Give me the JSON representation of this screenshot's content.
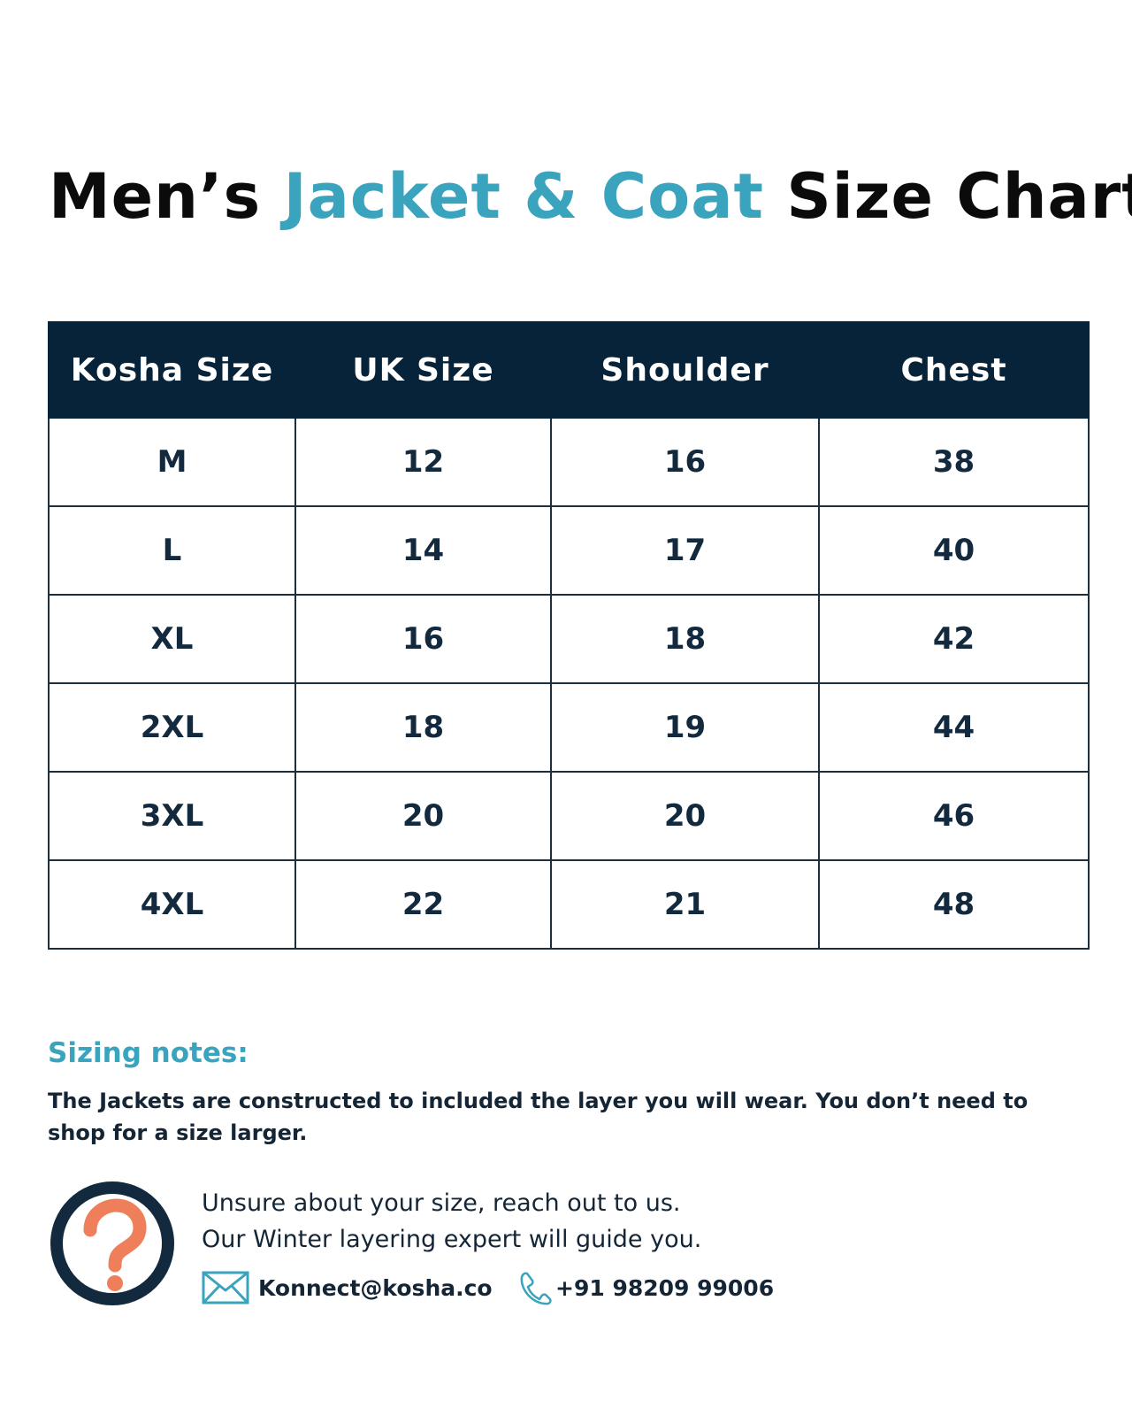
{
  "title": {
    "part1": "Men’s",
    "accent": "Jacket & Coat",
    "part2": "Size Chart"
  },
  "colors": {
    "accent": "#3aa3bd",
    "header_bg": "#062339",
    "text_dark": "#13293d",
    "question_mark": "#ee7f5a"
  },
  "table": {
    "headers": [
      "Kosha Size",
      "UK Size",
      "Shoulder",
      "Chest"
    ],
    "rows": [
      [
        "M",
        "12",
        "16",
        "38"
      ],
      [
        "L",
        "14",
        "17",
        "40"
      ],
      [
        "XL",
        "16",
        "18",
        "42"
      ],
      [
        "2XL",
        "18",
        "19",
        "44"
      ],
      [
        "3XL",
        "20",
        "20",
        "46"
      ],
      [
        "4XL",
        "22",
        "21",
        "48"
      ]
    ]
  },
  "notes": {
    "heading": "Sizing notes:",
    "text": "The Jackets are constructed to included the layer you will wear. You don’t need to shop for a size larger."
  },
  "help": {
    "icon": "question-circle-icon",
    "line1": "Unsure about your size, reach out to us.",
    "line2": "Our Winter layering expert will guide you."
  },
  "contact": {
    "email": "Konnect@kosha.co",
    "email_icon": "mail-icon",
    "phone": "+91 98209 99006",
    "phone_icon": "phone-icon"
  }
}
